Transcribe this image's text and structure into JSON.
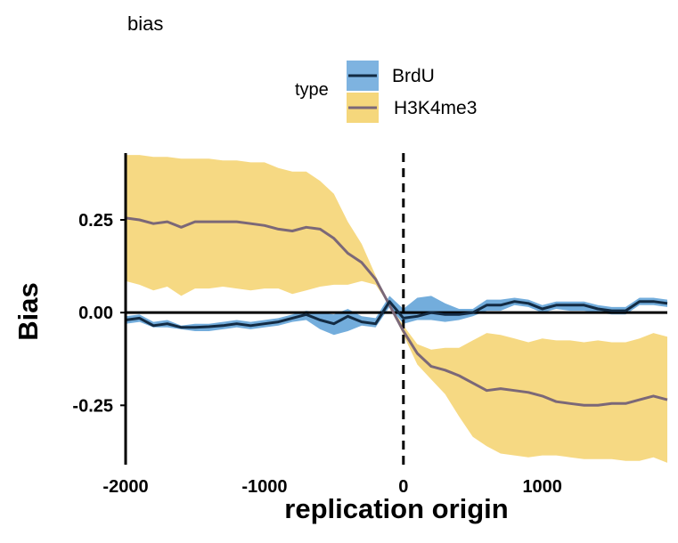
{
  "chart_data": {
    "type": "line",
    "title": "bias",
    "xlabel": "replication origin",
    "ylabel": "Bias",
    "xlim": [
      -2000,
      1900
    ],
    "ylim": [
      -0.41,
      0.43
    ],
    "xticks": [
      -2000,
      -1000,
      0,
      1000
    ],
    "xtick_labels": [
      "-2000",
      "-1000",
      "0",
      "1000"
    ],
    "yticks": [
      0.25,
      0.0,
      -0.25
    ],
    "ytick_labels": [
      "0.25",
      "0.00",
      "-0.25"
    ],
    "grid": false,
    "reference_lines": {
      "horizontal_y": 0,
      "vertical_dashed_x": 0
    },
    "legend": {
      "title": "type",
      "placement": "top",
      "entries": [
        "BrdU",
        "H3K4me3"
      ]
    },
    "x": [
      -2000,
      -1900,
      -1800,
      -1700,
      -1600,
      -1500,
      -1400,
      -1300,
      -1200,
      -1100,
      -1000,
      -900,
      -800,
      -700,
      -600,
      -500,
      -400,
      -300,
      -200,
      -100,
      0,
      100,
      200,
      300,
      400,
      500,
      600,
      700,
      800,
      900,
      1000,
      1100,
      1200,
      1300,
      1400,
      1500,
      1600,
      1700,
      1800,
      1900
    ],
    "series": [
      {
        "name": "BrdU",
        "line_color": "#132B43",
        "ribbon_color": "#5B9FD6",
        "mean": [
          -0.02,
          -0.015,
          -0.035,
          -0.03,
          -0.04,
          -0.04,
          -0.038,
          -0.035,
          -0.03,
          -0.035,
          -0.03,
          -0.025,
          -0.015,
          -0.005,
          -0.02,
          -0.03,
          -0.01,
          -0.025,
          -0.03,
          0.03,
          -0.015,
          -0.01,
          0.0,
          -0.005,
          -0.005,
          0.0,
          0.02,
          0.02,
          0.03,
          0.025,
          0.01,
          0.02,
          0.02,
          0.02,
          0.01,
          0.005,
          0.005,
          0.03,
          0.03,
          0.025
        ],
        "lower": [
          -0.03,
          -0.025,
          -0.04,
          -0.04,
          -0.045,
          -0.05,
          -0.05,
          -0.045,
          -0.04,
          -0.045,
          -0.04,
          -0.035,
          -0.025,
          -0.02,
          -0.045,
          -0.06,
          -0.05,
          -0.035,
          -0.04,
          0.015,
          -0.03,
          -0.02,
          -0.02,
          -0.025,
          -0.02,
          -0.01,
          0.005,
          0.005,
          0.02,
          0.015,
          0.0,
          0.01,
          0.005,
          0.005,
          0.0,
          -0.005,
          -0.005,
          0.02,
          0.02,
          0.015
        ],
        "upper": [
          -0.01,
          -0.005,
          -0.025,
          -0.02,
          -0.035,
          -0.03,
          -0.03,
          -0.025,
          -0.02,
          -0.025,
          -0.02,
          -0.015,
          -0.005,
          0.005,
          0.0,
          -0.005,
          0.01,
          -0.01,
          -0.015,
          0.045,
          0.01,
          0.04,
          0.045,
          0.025,
          0.01,
          0.01,
          0.035,
          0.035,
          0.04,
          0.035,
          0.02,
          0.03,
          0.03,
          0.03,
          0.02,
          0.015,
          0.015,
          0.04,
          0.04,
          0.035
        ]
      },
      {
        "name": "H3K4me3",
        "line_color": "#7B6878",
        "ribbon_color": "#F5D77C",
        "mean": [
          0.255,
          0.25,
          0.24,
          0.245,
          0.23,
          0.245,
          0.245,
          0.245,
          0.245,
          0.24,
          0.235,
          0.225,
          0.22,
          0.23,
          0.225,
          0.2,
          0.16,
          0.135,
          0.09,
          0.02,
          -0.05,
          -0.11,
          -0.145,
          -0.155,
          -0.17,
          -0.19,
          -0.21,
          -0.205,
          -0.21,
          -0.215,
          -0.225,
          -0.24,
          -0.245,
          -0.25,
          -0.25,
          -0.245,
          -0.245,
          -0.235,
          -0.225,
          -0.235
        ],
        "lower": [
          0.085,
          0.075,
          0.06,
          0.07,
          0.045,
          0.065,
          0.065,
          0.07,
          0.065,
          0.06,
          0.065,
          0.065,
          0.05,
          0.06,
          0.07,
          0.075,
          0.075,
          0.085,
          0.075,
          0.02,
          -0.06,
          -0.14,
          -0.18,
          -0.22,
          -0.28,
          -0.335,
          -0.36,
          -0.38,
          -0.385,
          -0.39,
          -0.385,
          -0.385,
          -0.39,
          -0.395,
          -0.395,
          -0.395,
          -0.4,
          -0.4,
          -0.39,
          -0.405
        ],
        "upper": [
          0.425,
          0.425,
          0.42,
          0.42,
          0.415,
          0.415,
          0.415,
          0.41,
          0.41,
          0.405,
          0.405,
          0.39,
          0.38,
          0.38,
          0.355,
          0.32,
          0.245,
          0.185,
          0.1,
          0.02,
          -0.035,
          -0.085,
          -0.1,
          -0.095,
          -0.095,
          -0.075,
          -0.055,
          -0.06,
          -0.07,
          -0.08,
          -0.07,
          -0.075,
          -0.075,
          -0.08,
          -0.075,
          -0.08,
          -0.08,
          -0.07,
          -0.055,
          -0.065
        ]
      }
    ]
  }
}
